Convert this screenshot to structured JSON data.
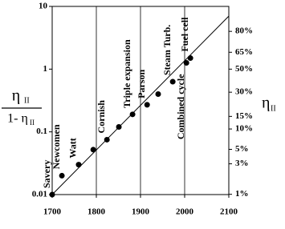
{
  "chart_data": {
    "type": "scatter",
    "x": [
      1700,
      1722,
      1760,
      1793,
      1824,
      1851,
      1882,
      1915,
      1940,
      1973,
      2004,
      2013
    ],
    "values": [
      0.01,
      0.02,
      0.03,
      0.052,
      0.075,
      0.12,
      0.19,
      0.27,
      0.4,
      0.63,
      1.26,
      1.5
    ],
    "labels": [
      "Savery",
      "Newcomen",
      "Watt",
      null,
      "Cornish",
      null,
      "Triple expansion",
      "Parson",
      null,
      "Steam Turb.",
      "Combined cycle",
      "Fuel cell"
    ],
    "color": "#000000",
    "trend_line": {
      "x": [
        1700,
        2100
      ],
      "y": [
        0.01,
        7
      ]
    },
    "xlim": [
      1700,
      2100
    ],
    "xticks": [
      1700,
      1800,
      1900,
      2000,
      2100
    ],
    "x_grid": [
      1800,
      1900,
      2000
    ],
    "ylim": [
      0.01,
      10
    ],
    "yticks": [
      0.01,
      0.1,
      1,
      10
    ],
    "y_scale": "log",
    "y2_scale": "efficiency-odds-log",
    "y2ticks": [
      {
        "value": 80,
        "label": "80%"
      },
      {
        "value": 65,
        "label": "65%"
      },
      {
        "value": 50,
        "label": "50%"
      },
      {
        "value": 30,
        "label": "30%"
      },
      {
        "value": 15,
        "label": "15%"
      },
      {
        "value": 10,
        "label": "10%"
      },
      {
        "value": 5,
        "label": "5%"
      },
      {
        "value": 3,
        "label": "3%"
      },
      {
        "value": 1,
        "label": "1%"
      }
    ],
    "ylabel": {
      "top": "η",
      "top_sub": "II",
      "bottom": "1- η",
      "bottom_sub": "II"
    },
    "y2label": {
      "text": "η",
      "sub": "II"
    }
  }
}
